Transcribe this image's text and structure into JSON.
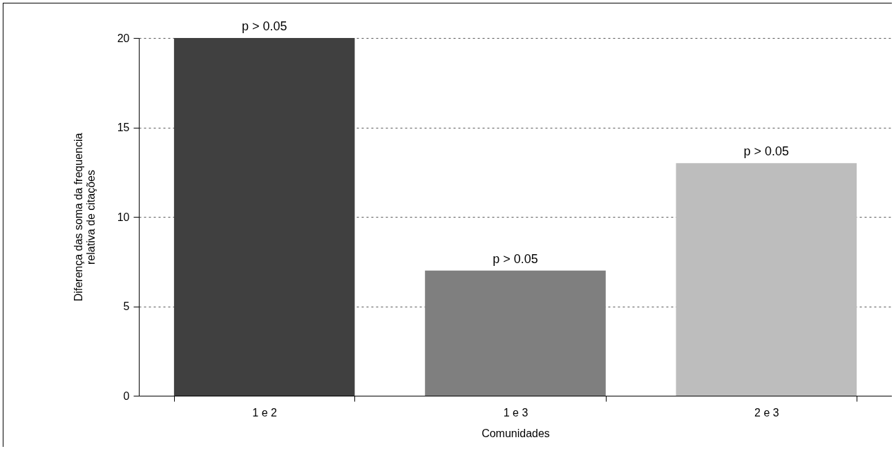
{
  "chart_data": {
    "type": "bar",
    "xlabel": "Comunidades",
    "ylabel": "Diferença das soma da frequencia\nrelativa de citações",
    "categories": [
      "1 e 2",
      "1 e 3",
      "2 e 3"
    ],
    "values": [
      20,
      7,
      13
    ],
    "colors": [
      "#404040",
      "#7f7f7f",
      "#bdbdbd"
    ],
    "ylim": [
      0,
      20
    ],
    "yticks": [
      0,
      5,
      10,
      15,
      20
    ],
    "grid": "y",
    "annotations": [
      {
        "text": "p > 0.05",
        "x": "1 e 2",
        "y": 20
      },
      {
        "text": "p > 0.05",
        "x": "1 e 3",
        "y": 7
      },
      {
        "text": "p > 0.05",
        "x": "2 e 3",
        "y": 13
      }
    ]
  }
}
